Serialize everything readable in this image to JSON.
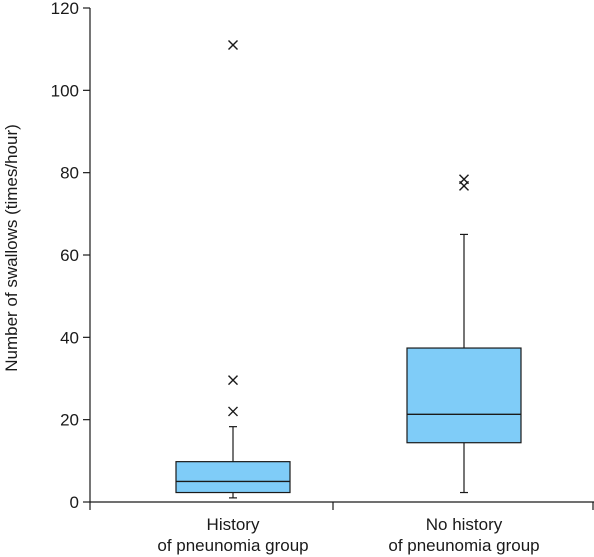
{
  "chart_data": {
    "type": "box",
    "ylabel": "Number of swallows (times/hour)",
    "ylim": [
      0,
      120
    ],
    "yticks": [
      0,
      20,
      40,
      60,
      80,
      100,
      120
    ],
    "ytick_labels": [
      "0",
      "20",
      "40",
      "60",
      "80",
      "100",
      "120"
    ],
    "categories": [
      {
        "line1": "History",
        "line2": "of pneunomia group"
      },
      {
        "line1": "No history",
        "line2": "of pneunomia group"
      }
    ],
    "boxes": [
      {
        "min": 1,
        "q1": 2.3,
        "median": 5,
        "q3": 9.8,
        "max": 18.3,
        "outliers": [
          22,
          29.6,
          111
        ]
      },
      {
        "min": 2.3,
        "q1": 14.4,
        "median": 21.3,
        "q3": 37.4,
        "max": 65,
        "outliers": [
          76.8,
          78.4
        ]
      }
    ],
    "colors": {
      "box_fill": "#7fccf8",
      "stroke": "#1a1a1a"
    }
  }
}
